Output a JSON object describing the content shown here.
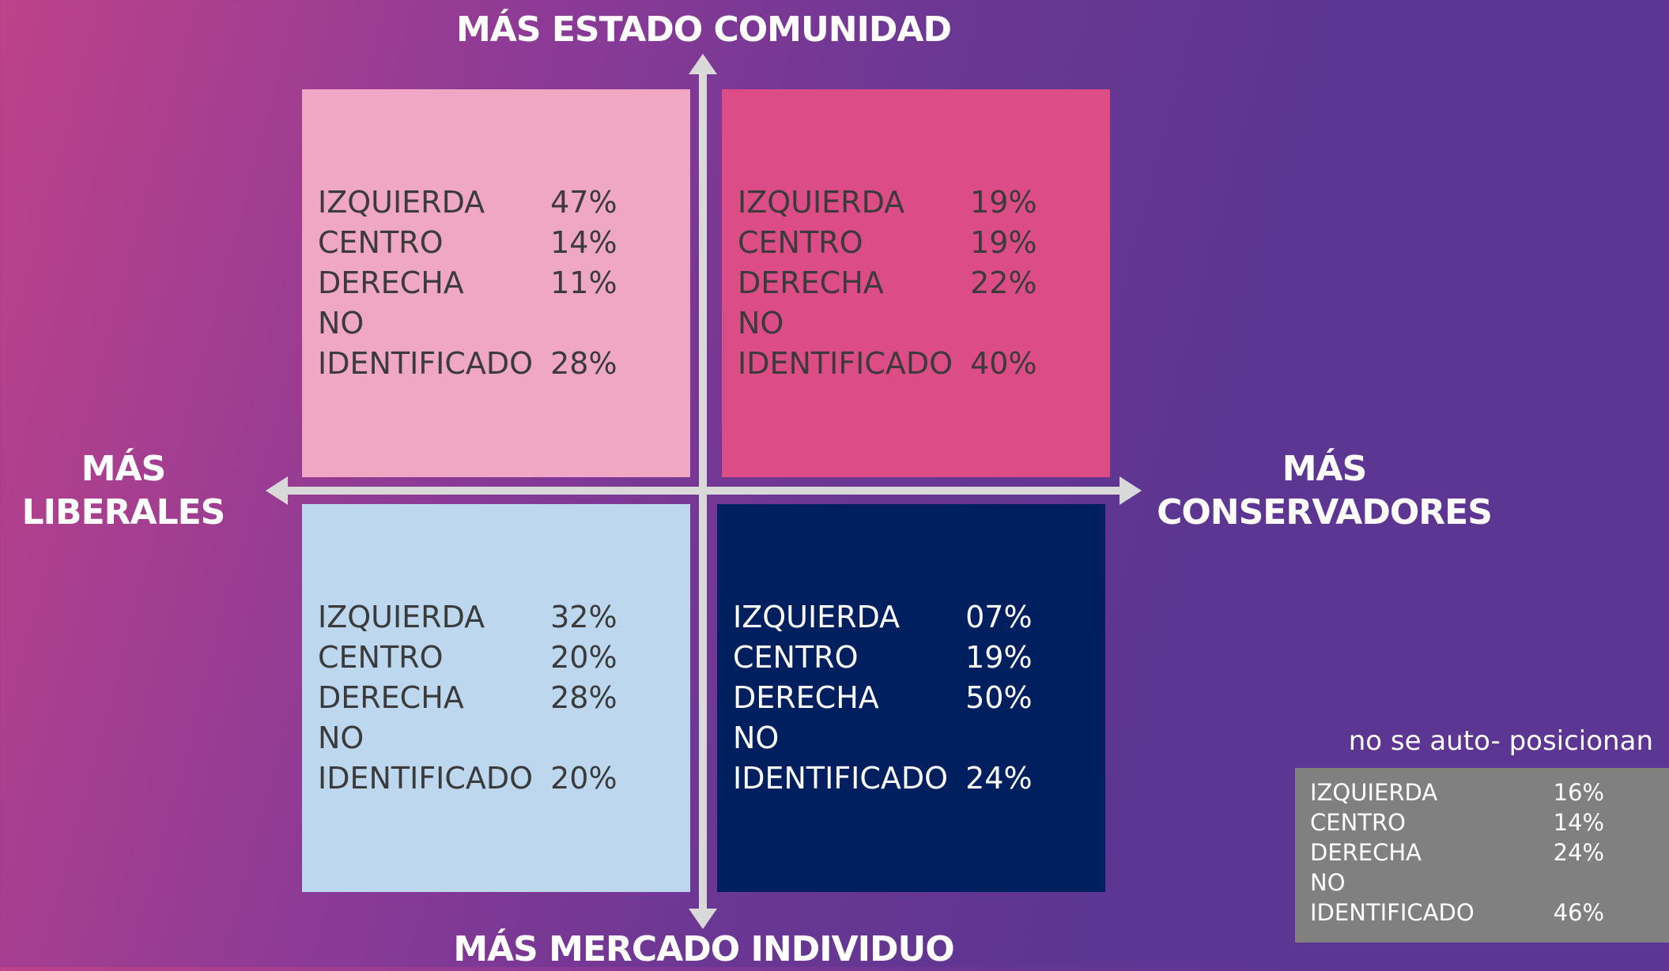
{
  "axes": {
    "top": "MÁS ESTADO COMUNIDAD",
    "bottom": "MÁS MERCADO INDIVIDUO",
    "left": [
      "MÁS",
      "LIBERALES"
    ],
    "right": [
      "MÁS",
      "CONSERVADORES"
    ]
  },
  "quadrants": [
    {
      "rows": [
        [
          "IZQUIERDA",
          "47%"
        ],
        [
          "CENTRO",
          "14%"
        ],
        [
          "DERECHA",
          "11%"
        ],
        [
          "NO IDENTIFICADO",
          "28%"
        ]
      ]
    },
    {
      "rows": [
        [
          "IZQUIERDA",
          "19%"
        ],
        [
          "CENTRO",
          "19%"
        ],
        [
          "DERECHA",
          "22%"
        ],
        [
          "NO IDENTIFICADO",
          "40%"
        ]
      ]
    },
    {
      "rows": [
        [
          "IZQUIERDA",
          "32%"
        ],
        [
          "CENTRO",
          "20%"
        ],
        [
          "DERECHA",
          "28%"
        ],
        [
          "NO IDENTIFICADO",
          "20%"
        ]
      ]
    },
    {
      "rows": [
        [
          "IZQUIERDA",
          "07%"
        ],
        [
          "CENTRO",
          "19%"
        ],
        [
          "DERECHA",
          "50%"
        ],
        [
          "NO IDENTIFICADO",
          "24%"
        ]
      ]
    }
  ],
  "unpositioned": {
    "title": "no se auto- posicionan",
    "rows": [
      [
        "IZQUIERDA",
        "16%"
      ],
      [
        "CENTRO",
        "14%"
      ],
      [
        "DERECHA",
        "24%"
      ],
      [
        "NO IDENTIFICADO",
        "46%"
      ]
    ]
  }
}
